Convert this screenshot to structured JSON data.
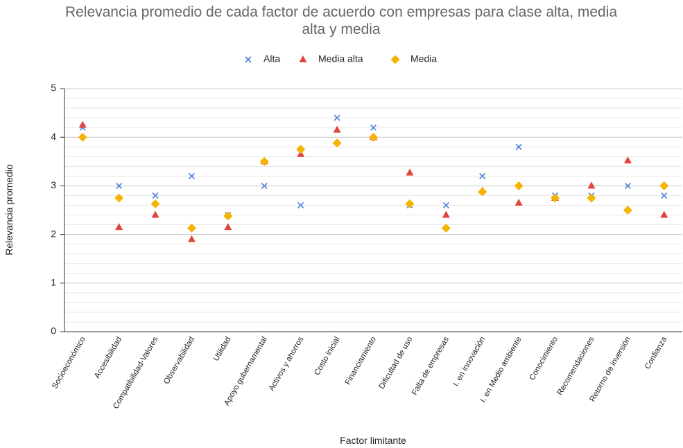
{
  "chart_data": {
    "type": "scatter",
    "title": "Relevancia promedio de cada factor de acuerdo con empresas para clase alta, media alta y media",
    "title_lines": [
      "Relevancia promedio de cada factor de acuerdo con empresas para clase alta, media",
      "alta y media"
    ],
    "x_label": "Factor limitante",
    "y_label": "Relevancia promedio",
    "categories": [
      "Socioeconómico",
      "Accesibilidad",
      "Compatibilidad-Valores",
      "Observabilidad",
      "Utilidad",
      "Apoyo gubernamental",
      "Activos y ahorros",
      "Costo inicial",
      "Financiamiento",
      "Dificultad de uso",
      "Falta de empresas",
      "I. en innovación",
      "I. en Medio ambiente",
      "Conocimiento",
      "Recomendaciones",
      "Retorno de inversión",
      "Confianza"
    ],
    "series": [
      {
        "name": "Alta",
        "color": "#4a7fd9",
        "marker": "x",
        "values": [
          4.2,
          3.0,
          2.8,
          3.2,
          2.4,
          3.0,
          2.6,
          4.4,
          4.2,
          2.6,
          2.6,
          3.2,
          3.8,
          2.8,
          2.8,
          3.0,
          2.8
        ]
      },
      {
        "name": "Media alta",
        "color": "#e0443a",
        "marker": "triangle",
        "values": [
          4.25,
          2.15,
          2.4,
          1.9,
          2.15,
          3.5,
          3.65,
          4.15,
          4.0,
          3.27,
          2.4,
          2.9,
          2.65,
          2.75,
          3.0,
          3.52,
          2.4
        ]
      },
      {
        "name": "Media",
        "color": "#f6b400",
        "marker": "diamond",
        "values": [
          4.0,
          2.75,
          2.63,
          2.13,
          2.38,
          3.5,
          3.75,
          3.88,
          4.0,
          2.63,
          2.13,
          2.88,
          3.0,
          2.75,
          2.75,
          2.5,
          3.0
        ]
      }
    ],
    "ylim": [
      0,
      5
    ],
    "yticks": [
      0,
      1,
      2,
      3,
      4,
      5
    ],
    "grid": true,
    "legend": "top"
  }
}
